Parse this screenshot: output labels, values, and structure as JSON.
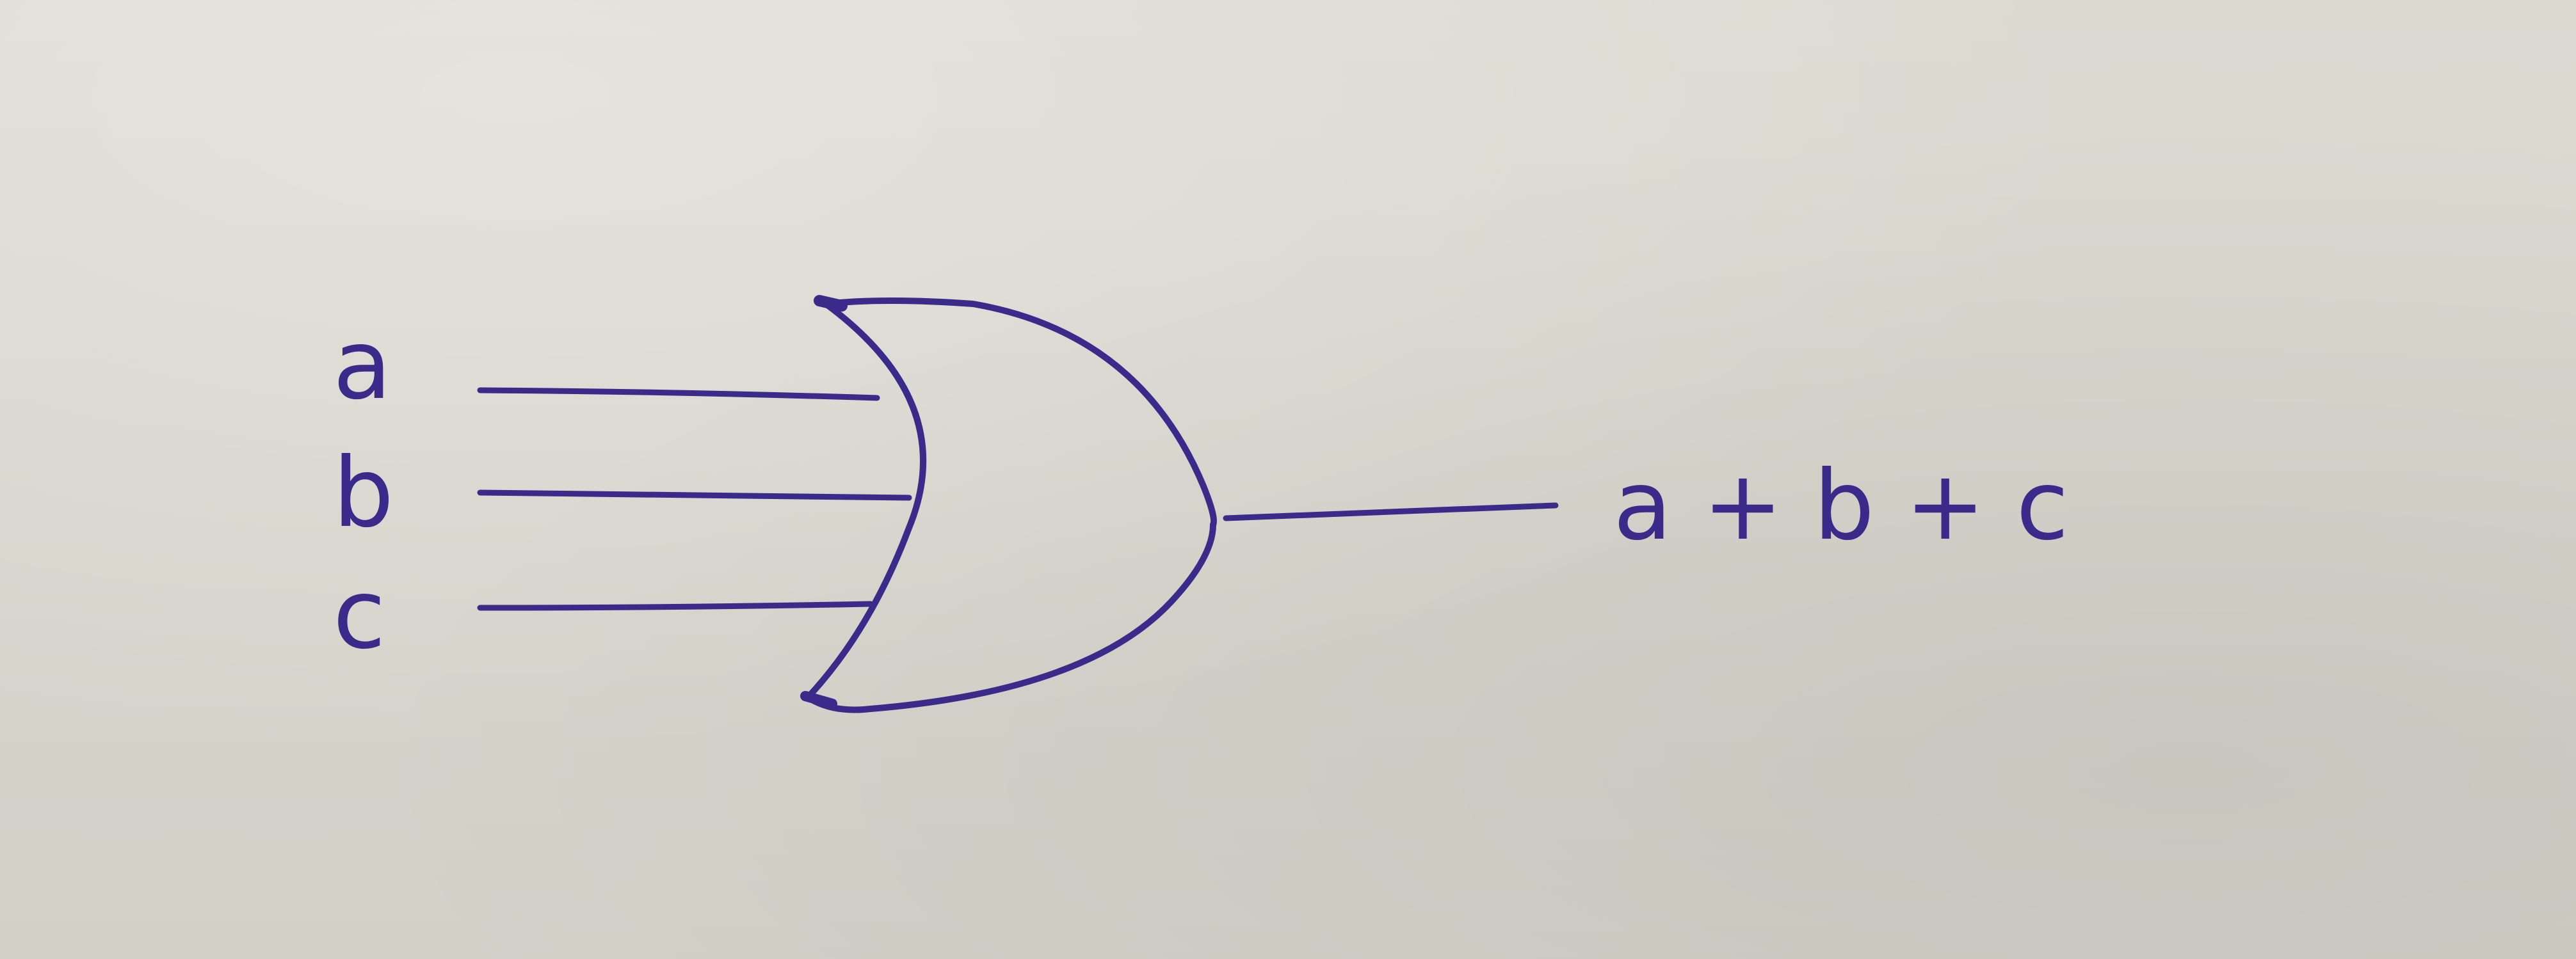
{
  "diagram": {
    "inputs": [
      {
        "name": "a"
      },
      {
        "name": "b"
      },
      {
        "name": "c"
      }
    ],
    "gate": {
      "type": "OR",
      "output_label": "a + b + c"
    }
  },
  "colors": {
    "ink": "#3a2a8a",
    "paper": "#d8d7ce"
  }
}
